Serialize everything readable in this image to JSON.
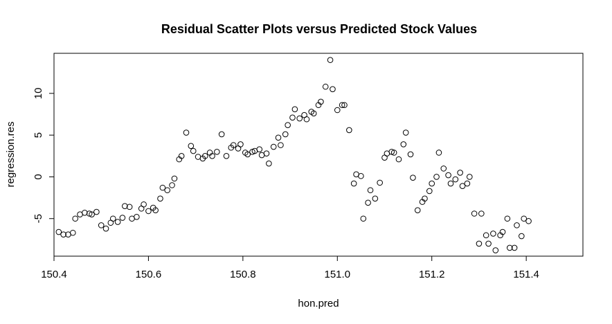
{
  "chart_data": {
    "type": "scatter",
    "title": "Residual Scatter Plots versus Predicted Stock Values",
    "xlabel": "hon.pred",
    "ylabel": "regression.res",
    "xlim": [
      150.4,
      151.52
    ],
    "ylim": [
      -9.5,
      14.8
    ],
    "xticks": [
      150.4,
      150.6,
      150.8,
      151.0,
      151.2,
      151.4
    ],
    "xtick_labels": [
      "150.4",
      "150.6",
      "150.8",
      "151.0",
      "151.2",
      "151.4"
    ],
    "yticks": [
      -5,
      0,
      5,
      10
    ],
    "ytick_labels": [
      "-5",
      "0",
      "5",
      "10"
    ],
    "grid": false,
    "marker": "open-circle",
    "points": [
      [
        150.41,
        -6.6
      ],
      [
        150.42,
        -6.9
      ],
      [
        150.43,
        -6.9
      ],
      [
        150.44,
        -6.7
      ],
      [
        150.445,
        -5.0
      ],
      [
        150.455,
        -4.5
      ],
      [
        150.465,
        -4.3
      ],
      [
        150.475,
        -4.4
      ],
      [
        150.48,
        -4.5
      ],
      [
        150.49,
        -4.2
      ],
      [
        150.5,
        -5.8
      ],
      [
        150.51,
        -6.2
      ],
      [
        150.52,
        -5.5
      ],
      [
        150.525,
        -5.0
      ],
      [
        150.535,
        -5.4
      ],
      [
        150.545,
        -4.9
      ],
      [
        150.55,
        -3.5
      ],
      [
        150.56,
        -3.6
      ],
      [
        150.565,
        -5.0
      ],
      [
        150.575,
        -4.8
      ],
      [
        150.585,
        -3.8
      ],
      [
        150.59,
        -3.3
      ],
      [
        150.6,
        -4.1
      ],
      [
        150.61,
        -3.7
      ],
      [
        150.615,
        -4.0
      ],
      [
        150.625,
        -2.6
      ],
      [
        150.63,
        -1.3
      ],
      [
        150.64,
        -1.6
      ],
      [
        150.65,
        -1.0
      ],
      [
        150.655,
        -0.2
      ],
      [
        150.665,
        2.1
      ],
      [
        150.67,
        2.5
      ],
      [
        150.68,
        5.3
      ],
      [
        150.69,
        3.7
      ],
      [
        150.695,
        3.1
      ],
      [
        150.705,
        2.4
      ],
      [
        150.715,
        2.2
      ],
      [
        150.72,
        2.5
      ],
      [
        150.73,
        2.9
      ],
      [
        150.735,
        2.5
      ],
      [
        150.745,
        3.0
      ],
      [
        150.755,
        5.1
      ],
      [
        150.765,
        2.5
      ],
      [
        150.775,
        3.5
      ],
      [
        150.78,
        3.8
      ],
      [
        150.79,
        3.4
      ],
      [
        150.795,
        3.9
      ],
      [
        150.805,
        2.9
      ],
      [
        150.81,
        2.7
      ],
      [
        150.82,
        3.0
      ],
      [
        150.825,
        3.1
      ],
      [
        150.835,
        3.3
      ],
      [
        150.84,
        2.6
      ],
      [
        150.85,
        2.8
      ],
      [
        150.855,
        1.6
      ],
      [
        150.865,
        3.6
      ],
      [
        150.875,
        4.7
      ],
      [
        150.88,
        3.8
      ],
      [
        150.89,
        5.1
      ],
      [
        150.895,
        6.2
      ],
      [
        150.905,
        7.1
      ],
      [
        150.91,
        8.1
      ],
      [
        150.92,
        7.0
      ],
      [
        150.93,
        7.4
      ],
      [
        150.935,
        6.9
      ],
      [
        150.945,
        7.8
      ],
      [
        150.95,
        7.6
      ],
      [
        150.96,
        8.6
      ],
      [
        150.965,
        9.0
      ],
      [
        150.975,
        10.8
      ],
      [
        150.985,
        14.0
      ],
      [
        150.99,
        10.5
      ],
      [
        151.0,
        8.0
      ],
      [
        151.01,
        8.6
      ],
      [
        151.015,
        8.6
      ],
      [
        151.025,
        5.6
      ],
      [
        151.035,
        -0.8
      ],
      [
        151.04,
        0.3
      ],
      [
        151.05,
        0.1
      ],
      [
        151.055,
        -5.0
      ],
      [
        151.065,
        -3.1
      ],
      [
        151.07,
        -1.6
      ],
      [
        151.08,
        -2.6
      ],
      [
        151.09,
        -0.7
      ],
      [
        151.1,
        2.3
      ],
      [
        151.105,
        2.8
      ],
      [
        151.115,
        3.0
      ],
      [
        151.12,
        2.9
      ],
      [
        151.13,
        2.1
      ],
      [
        151.14,
        3.9
      ],
      [
        151.145,
        5.3
      ],
      [
        151.155,
        2.7
      ],
      [
        151.16,
        -0.1
      ],
      [
        151.17,
        -4.0
      ],
      [
        151.18,
        -3.0
      ],
      [
        151.185,
        -2.6
      ],
      [
        151.195,
        -1.7
      ],
      [
        151.2,
        -0.8
      ],
      [
        151.21,
        0.0
      ],
      [
        151.215,
        2.9
      ],
      [
        151.225,
        1.0
      ],
      [
        151.235,
        0.2
      ],
      [
        151.24,
        -0.8
      ],
      [
        151.25,
        -0.3
      ],
      [
        151.26,
        0.5
      ],
      [
        151.265,
        -1.1
      ],
      [
        151.275,
        -0.8
      ],
      [
        151.28,
        0.0
      ],
      [
        151.29,
        -4.4
      ],
      [
        151.3,
        -8.0
      ],
      [
        151.305,
        -4.4
      ],
      [
        151.315,
        -7.0
      ],
      [
        151.32,
        -8.0
      ],
      [
        151.33,
        -6.8
      ],
      [
        151.335,
        -8.8
      ],
      [
        151.345,
        -7.0
      ],
      [
        151.35,
        -6.6
      ],
      [
        151.36,
        -5.0
      ],
      [
        151.365,
        -8.5
      ],
      [
        151.375,
        -8.5
      ],
      [
        151.38,
        -5.8
      ],
      [
        151.39,
        -7.1
      ],
      [
        151.395,
        -5.0
      ],
      [
        151.405,
        -5.3
      ]
    ]
  }
}
